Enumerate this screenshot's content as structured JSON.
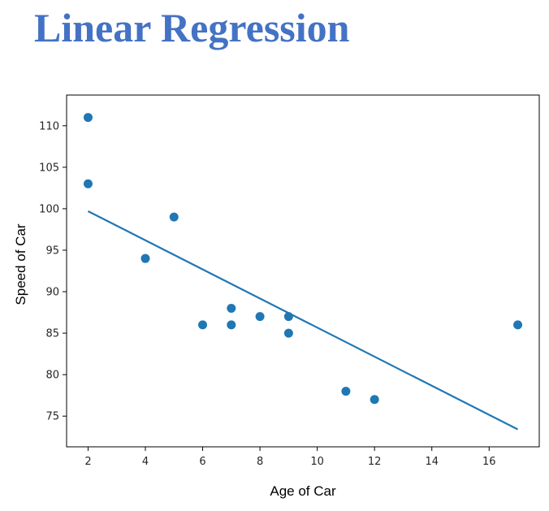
{
  "page": {
    "title": "Linear Regression"
  },
  "colors": {
    "title": "#4472c4",
    "points": "#1f77b4",
    "line": "#1f77b4",
    "axis": "#000000"
  },
  "chart_data": {
    "type": "scatter",
    "title": "",
    "xlabel": "Age of Car",
    "ylabel": "Speed of Car",
    "xlim": [
      1.25,
      17.75
    ],
    "ylim": [
      71.3,
      113.7
    ],
    "xticks": [
      2,
      4,
      6,
      8,
      10,
      12,
      14,
      16
    ],
    "yticks": [
      75,
      80,
      85,
      90,
      95,
      100,
      105,
      110
    ],
    "grid": false,
    "legend": "none",
    "series": [
      {
        "x": [
          5,
          7,
          8,
          7,
          2,
          17,
          2,
          9,
          4,
          11,
          12,
          9,
          6
        ],
        "y": [
          99,
          86,
          87,
          88,
          111,
          86,
          103,
          87,
          94,
          78,
          77,
          85,
          86
        ]
      }
    ],
    "regression_line": {
      "x": [
        2,
        17
      ],
      "y": [
        99.7,
        73.4
      ]
    }
  }
}
